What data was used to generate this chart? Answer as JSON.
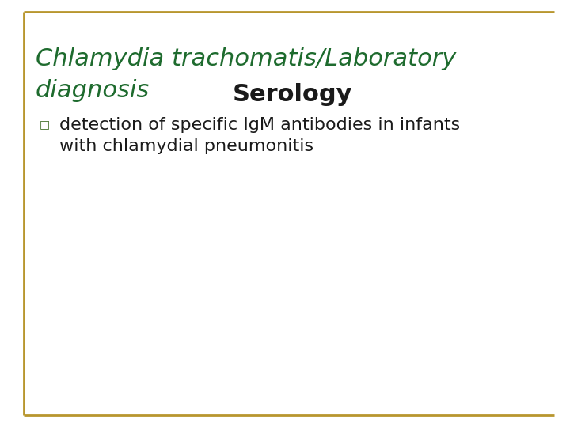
{
  "bg_color": "#ffffff",
  "title_line1": "Chlamydia trachomatis/Laboratory",
  "title_line2": "diagnosis",
  "title_color": "#1e6b2e",
  "title_fontsize": 22,
  "subtitle_text": "Serology",
  "subtitle_color": "#1a1a1a",
  "subtitle_fontsize": 22,
  "bullet_color": "#3a6b20",
  "bullet_text_line1": "detection of specific IgM antibodies in infants",
  "bullet_text_line2": "with chlamydial pneumonitis",
  "bullet_fontsize": 16,
  "bullet_text_color": "#1a1a1a",
  "border_color": "#b8962e",
  "border_linewidth": 2.0
}
